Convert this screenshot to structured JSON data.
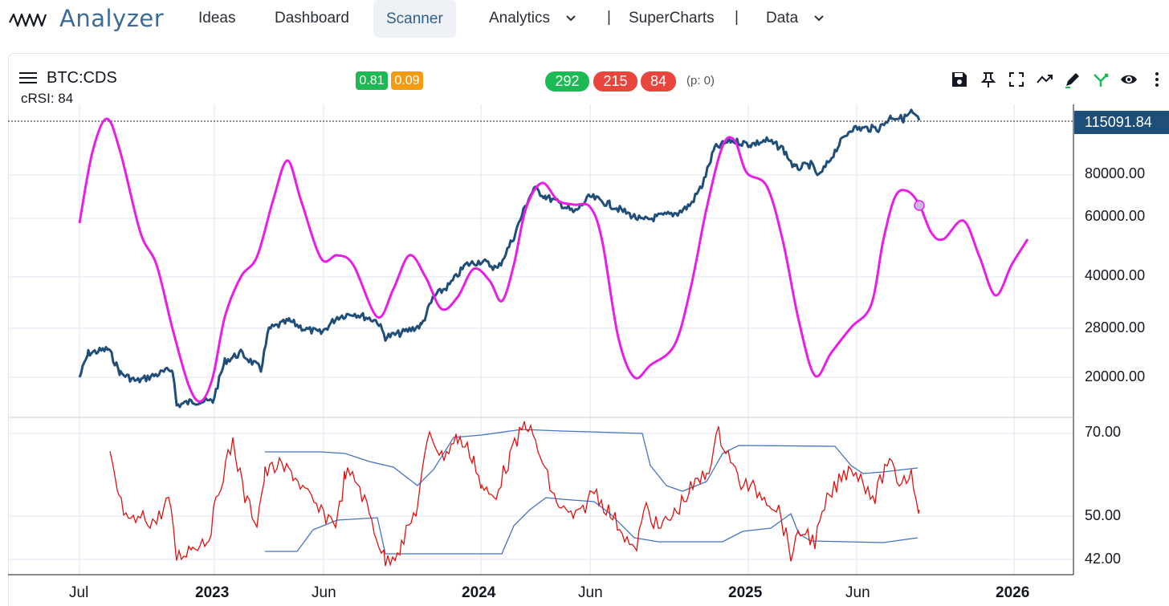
{
  "app": {
    "name": "Analyzer"
  },
  "nav": {
    "ideas": "Ideas",
    "dashboard": "Dashboard",
    "scanner": "Scanner",
    "analytics": "Analytics",
    "separator": "|",
    "supercharts": "SuperCharts",
    "data": "Data"
  },
  "chart": {
    "symbol": "BTC:CDS",
    "indicator_label": "cRSI: 84",
    "badges": {
      "a": "0.81",
      "b": "0.09"
    },
    "counts": {
      "green": "292",
      "red1": "215",
      "red2": "84"
    },
    "p_value": "(p: 0)",
    "last_price": "115091.84",
    "price_axis": [
      "80000.00",
      "60000.00",
      "40000.00",
      "28000.00",
      "20000.00"
    ],
    "indicator_axis": [
      "70.00",
      "50.00",
      "42.00"
    ],
    "x_axis": [
      {
        "label": "Jul",
        "bold": false
      },
      {
        "label": "2023",
        "bold": true
      },
      {
        "label": "Jun",
        "bold": false
      },
      {
        "label": "2024",
        "bold": true
      },
      {
        "label": "Jun",
        "bold": false
      },
      {
        "label": "2025",
        "bold": true
      },
      {
        "label": "Jun",
        "bold": false
      },
      {
        "label": "2026",
        "bold": true
      }
    ]
  },
  "colors": {
    "price": "#1f4e79",
    "cycle": "#e81ee8",
    "rsi": "#e0120f",
    "bands": "#4472c4",
    "green": "#1db954",
    "orange": "#f39c12",
    "red": "#e8453c"
  },
  "toolbar": [
    "save-icon",
    "pin-icon",
    "fullscreen-icon",
    "trend-icon",
    "draw-icon",
    "fork-icon",
    "eye-icon",
    "more-icon"
  ]
}
